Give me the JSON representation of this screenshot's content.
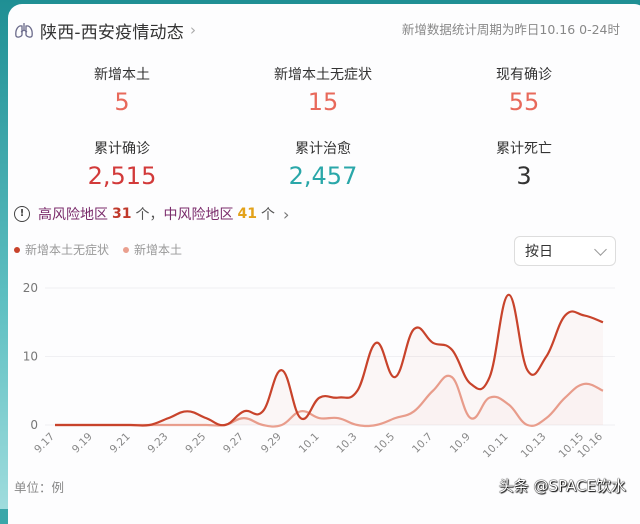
{
  "header": {
    "icon": "lungs-icon",
    "title": "陕西-西安疫情动态",
    "chevron": "›",
    "period_note": "新增数据统计周期为昨日10.16 0-24时"
  },
  "stats": [
    {
      "label": "新增本土",
      "value": "5",
      "color": "#e8695b"
    },
    {
      "label": "新增本土无症状",
      "value": "15",
      "color": "#e8695b"
    },
    {
      "label": "现有确诊",
      "value": "55",
      "color": "#e8695b"
    },
    {
      "label": "累计确诊",
      "value": "2,515",
      "color": "#d23a3a"
    },
    {
      "label": "累计治愈",
      "value": "2,457",
      "color": "#2aa7a9"
    },
    {
      "label": "累计死亡",
      "value": "3",
      "color": "#333333"
    }
  ],
  "risk": {
    "icon": "info-circle-icon",
    "high_label": "高风险地区",
    "high_count": "31",
    "unit1": "个，",
    "mid_label": "中风险地区",
    "mid_count": "41",
    "unit2": "个",
    "chevron": "›"
  },
  "legend": [
    {
      "label": "新增本土无症状",
      "color": "#c8432b"
    },
    {
      "label": "新增本土",
      "color": "#eaa08f"
    }
  ],
  "select": {
    "value": "按日"
  },
  "footer": {
    "unit": "单位：例",
    "watermark": "头条 @SPACE饮水"
  },
  "chart_data": {
    "type": "line",
    "title": "",
    "xlabel": "",
    "ylabel": "",
    "ylim": [
      0,
      20
    ],
    "yticks": [
      0,
      10,
      20
    ],
    "grid": true,
    "legend_position": "top-left",
    "x": [
      "9.17",
      "9.18",
      "9.19",
      "9.20",
      "9.21",
      "9.22",
      "9.23",
      "9.24",
      "9.25",
      "9.26",
      "9.27",
      "9.28",
      "9.29",
      "9.30",
      "10.1",
      "10.2",
      "10.3",
      "10.4",
      "10.5",
      "10.6",
      "10.7",
      "10.8",
      "10.9",
      "10.10",
      "10.11",
      "10.12",
      "10.13",
      "10.14",
      "10.15",
      "10.16"
    ],
    "xtick_labels": [
      "9.17",
      "9.19",
      "9.21",
      "9.23",
      "9.25",
      "9.27",
      "9.29",
      "10.1",
      "10.3",
      "10.5",
      "10.7",
      "10.9",
      "10.11",
      "10.13",
      "10.15",
      "10.16"
    ],
    "series": [
      {
        "name": "新增本土无症状",
        "color": "#c8432b",
        "values": [
          0,
          0,
          0,
          0,
          0,
          0,
          1,
          2,
          1,
          0,
          2,
          2,
          8,
          1,
          4,
          4,
          5,
          12,
          7,
          14,
          12,
          11,
          6,
          7,
          19,
          8,
          10,
          16,
          16,
          15
        ]
      },
      {
        "name": "新增本土",
        "color": "#eaa08f",
        "values": [
          0,
          0,
          0,
          0,
          0,
          0,
          0,
          0,
          0,
          0,
          1,
          0,
          0,
          2,
          1,
          1,
          0,
          0,
          1,
          2,
          5,
          7,
          1,
          4,
          3,
          0,
          1,
          4,
          6,
          5
        ]
      }
    ]
  }
}
